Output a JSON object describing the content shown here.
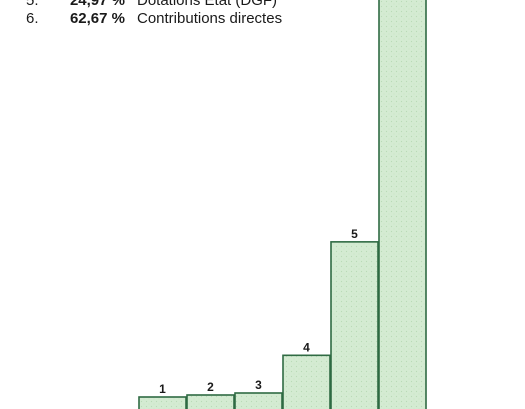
{
  "chart_data": {
    "type": "bar",
    "categories": [
      "1",
      "2",
      "3",
      "4",
      "5",
      "6"
    ],
    "values": [
      0.66,
      1.15,
      2.23,
      8.32,
      24.97,
      62.67
    ],
    "legend": [
      {
        "num": "5.",
        "percent": "24,97 %",
        "label": "Dotations Etat (DGF)"
      },
      {
        "num": "6.",
        "percent": "62,67 %",
        "label": "Contributions directes"
      }
    ],
    "title": "",
    "xlabel": "",
    "ylabel": "",
    "ylim": [
      0,
      62.67
    ],
    "grid": false,
    "colors": {
      "bar_fill": "#d4ebd2",
      "bar_stroke": "#2f6b43"
    }
  }
}
